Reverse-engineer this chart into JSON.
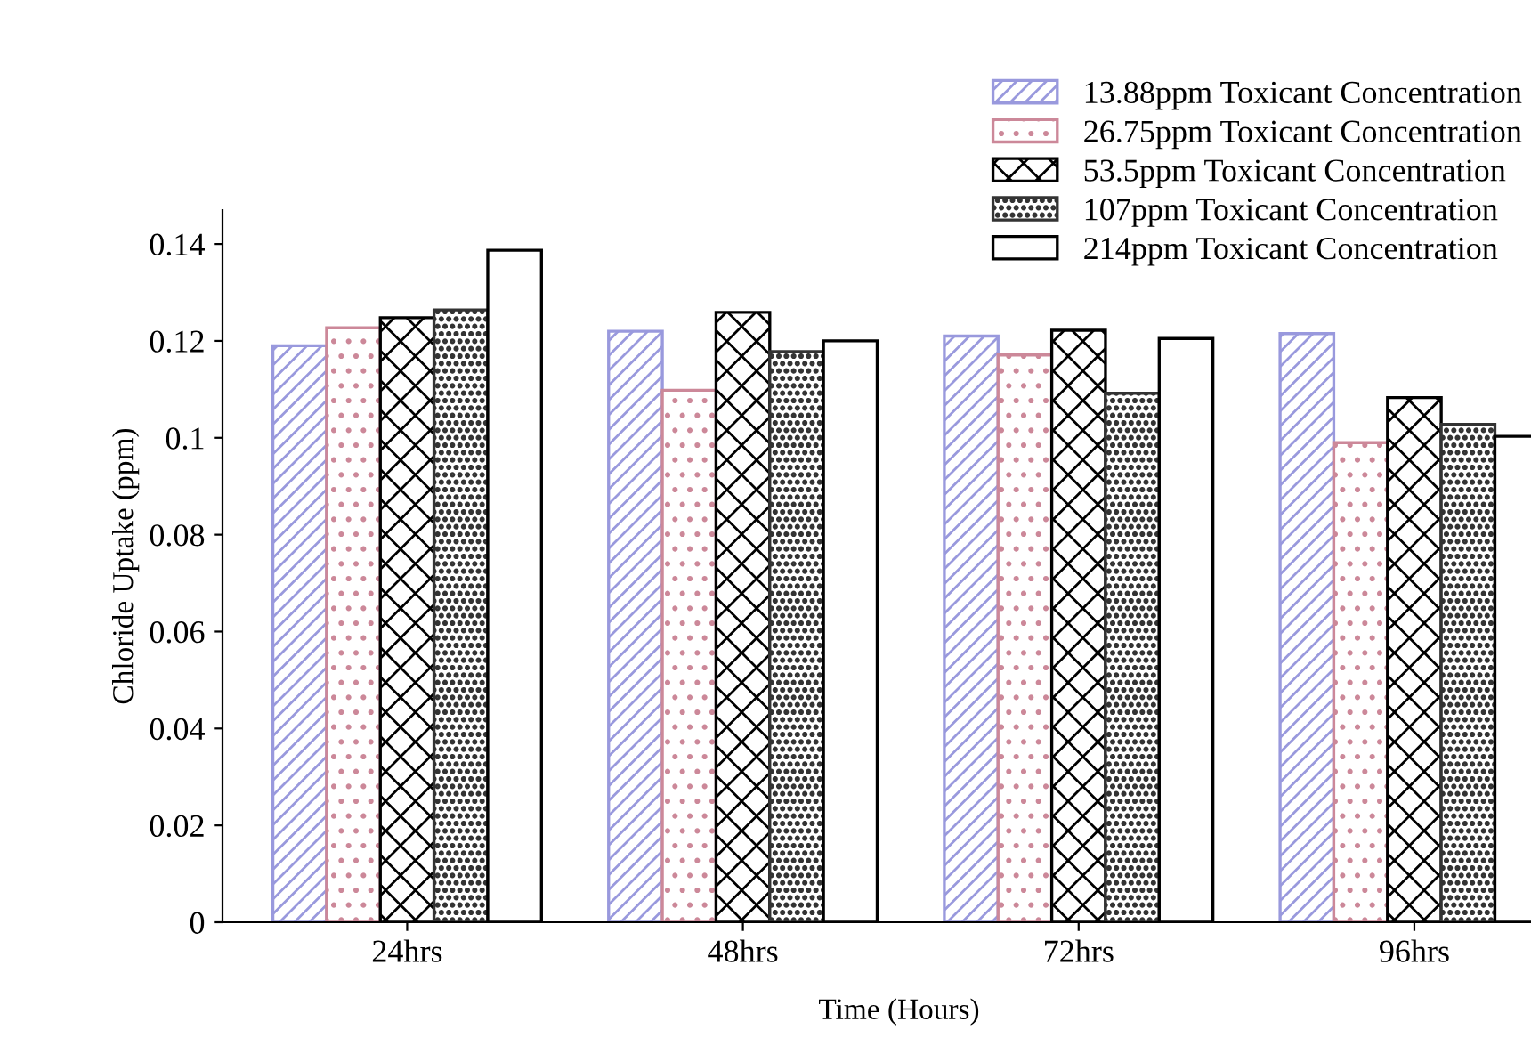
{
  "chart_data": {
    "type": "bar",
    "xlabel": "Time (Hours)",
    "ylabel": "Chloride Uptake (ppm)",
    "categories": [
      "24hrs",
      "48hrs",
      "72hrs",
      "96hrs"
    ],
    "series": [
      {
        "name": "13.88ppm Toxicant Concentration",
        "color": "#9999dd",
        "values": [
          0.119,
          0.122,
          0.121,
          0.1215
        ]
      },
      {
        "name": "26.75ppm Toxicant Concentration",
        "color": "#cc8899",
        "values": [
          0.1227,
          0.1098,
          0.1171,
          0.099
        ]
      },
      {
        "name": "53.5ppm Toxicant Concentration",
        "color": "#000000",
        "values": [
          0.1248,
          0.1259,
          0.1222,
          0.1083
        ]
      },
      {
        "name": "107ppm Toxicant Concentration",
        "color": "#333333",
        "values": [
          0.1264,
          0.1178,
          0.1092,
          0.1028
        ]
      },
      {
        "name": "214ppm Toxicant Concentration",
        "color": "#ffffff",
        "values": [
          0.1387,
          0.12,
          0.1205,
          0.1003
        ]
      }
    ],
    "ylim": [
      0,
      0.147
    ],
    "yticks": [
      0,
      0.02,
      0.04,
      0.06,
      0.08,
      0.1,
      0.12,
      0.14
    ],
    "grid": false,
    "legend": "top right"
  }
}
